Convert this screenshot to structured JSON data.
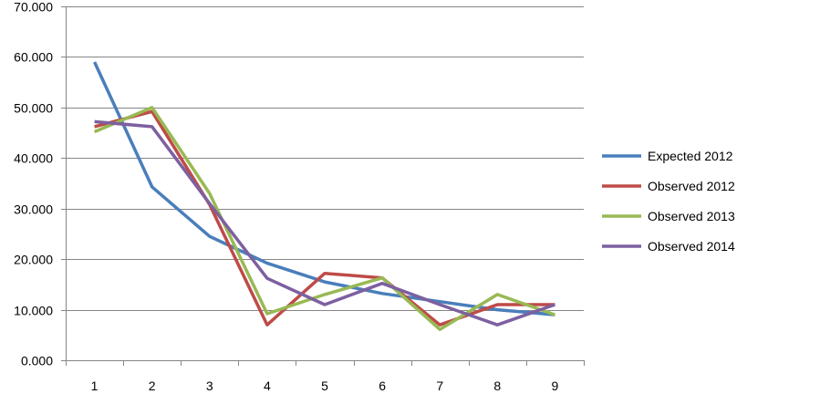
{
  "chart_data": {
    "type": "line",
    "categories": [
      "1",
      "2",
      "3",
      "4",
      "5",
      "6",
      "7",
      "8",
      "9"
    ],
    "ylim": [
      0,
      70
    ],
    "ytick_labels": [
      "0.000",
      "10.000",
      "20.000",
      "30.000",
      "40.000",
      "50.000",
      "60.000",
      "70.000"
    ],
    "grid": "horizontal",
    "legend_position": "right",
    "series": [
      {
        "name": "Expected 2012",
        "color": "#4a7ebb",
        "values": [
          59.0,
          34.3,
          24.5,
          19.2,
          15.5,
          13.2,
          11.6,
          10.0,
          9.0
        ]
      },
      {
        "name": "Observed 2012",
        "color": "#be4b48",
        "values": [
          46.2,
          49.2,
          30.8,
          7.0,
          17.2,
          16.3,
          7.0,
          11.0,
          11.0
        ]
      },
      {
        "name": "Observed 2013",
        "color": "#98b954",
        "values": [
          45.2,
          50.0,
          33.0,
          9.2,
          13.0,
          16.3,
          6.1,
          13.0,
          9.0
        ]
      },
      {
        "name": "Observed 2014",
        "color": "#7d60a0",
        "values": [
          47.2,
          46.2,
          31.0,
          16.2,
          11.0,
          15.2,
          11.0,
          7.0,
          11.0
        ]
      }
    ]
  }
}
